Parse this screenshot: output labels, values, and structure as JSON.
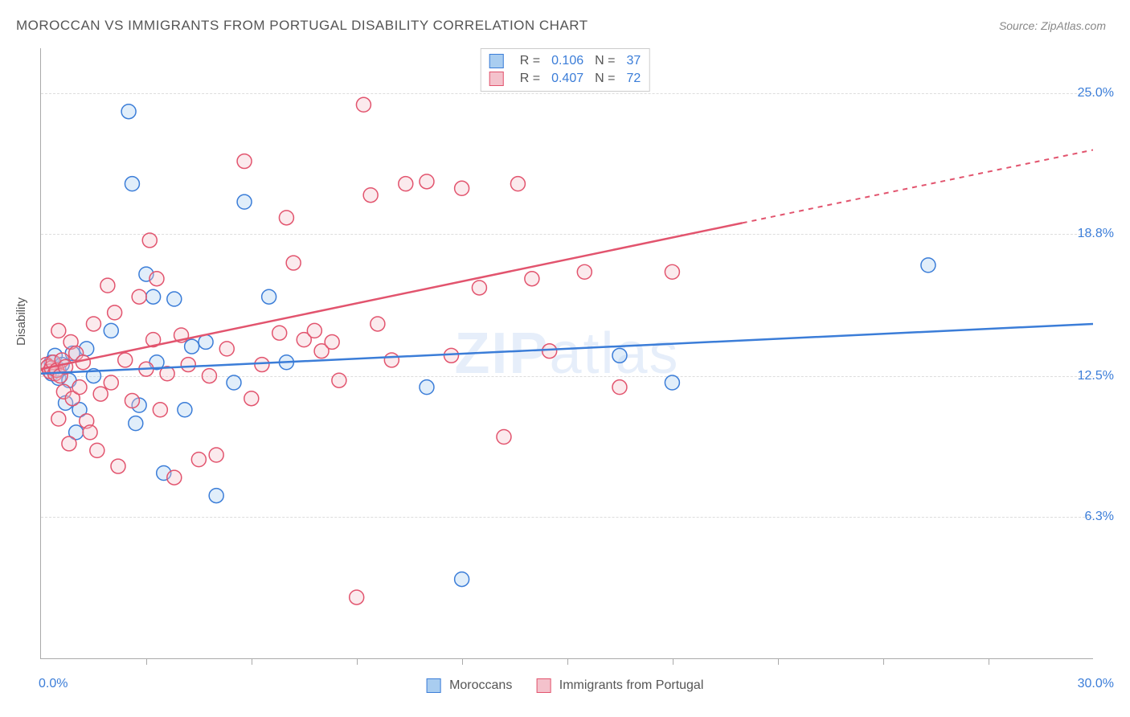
{
  "title": "MOROCCAN VS IMMIGRANTS FROM PORTUGAL DISABILITY CORRELATION CHART",
  "source": "Source: ZipAtlas.com",
  "watermark": "ZIPatlas",
  "ylabel": "Disability",
  "chart": {
    "type": "scatter",
    "xlim": [
      0,
      30
    ],
    "ylim": [
      0,
      27
    ],
    "xlabel_min": "0.0%",
    "xlabel_max": "30.0%",
    "xticks": [
      3,
      6,
      9,
      12,
      15,
      18,
      21,
      24,
      27
    ],
    "gridlines_y": [
      6.3,
      12.5,
      18.8,
      25.0
    ],
    "ytick_labels": [
      {
        "y": 6.3,
        "text": "6.3%"
      },
      {
        "y": 12.5,
        "text": "12.5%"
      },
      {
        "y": 18.8,
        "text": "18.8%"
      },
      {
        "y": 25.0,
        "text": "25.0%"
      }
    ],
    "background_color": "#ffffff",
    "grid_color": "#dddddd",
    "axis_color": "#aaaaaa",
    "tick_label_color": "#3b7dd8",
    "marker_radius": 9,
    "marker_fill_opacity": 0.35,
    "series": [
      {
        "name": "Moroccans",
        "color_fill": "#a9cdf0",
        "color_stroke": "#3b7dd8",
        "R": "0.106",
        "N": "37",
        "trend": {
          "x1": 0,
          "y1": 12.6,
          "x2": 30,
          "y2": 14.8,
          "solid_until_x": 30
        },
        "points": [
          [
            0.2,
            12.9
          ],
          [
            0.3,
            13.1
          ],
          [
            0.3,
            12.6
          ],
          [
            0.4,
            13.4
          ],
          [
            0.5,
            12.4
          ],
          [
            0.5,
            12.8
          ],
          [
            0.6,
            13.0
          ],
          [
            0.7,
            11.3
          ],
          [
            0.8,
            12.3
          ],
          [
            0.9,
            13.5
          ],
          [
            1.0,
            10.0
          ],
          [
            1.1,
            11.0
          ],
          [
            1.3,
            13.7
          ],
          [
            1.5,
            12.5
          ],
          [
            2.0,
            14.5
          ],
          [
            2.5,
            24.2
          ],
          [
            2.6,
            21.0
          ],
          [
            2.7,
            10.4
          ],
          [
            2.8,
            11.2
          ],
          [
            3.0,
            17.0
          ],
          [
            3.2,
            16.0
          ],
          [
            3.3,
            13.1
          ],
          [
            3.5,
            8.2
          ],
          [
            3.8,
            15.9
          ],
          [
            4.1,
            11.0
          ],
          [
            4.3,
            13.8
          ],
          [
            4.7,
            14.0
          ],
          [
            5.0,
            7.2
          ],
          [
            5.5,
            12.2
          ],
          [
            5.8,
            20.2
          ],
          [
            6.5,
            16.0
          ],
          [
            7.0,
            13.1
          ],
          [
            11.0,
            12.0
          ],
          [
            12.0,
            3.5
          ],
          [
            16.5,
            13.4
          ],
          [
            18.0,
            12.2
          ],
          [
            25.3,
            17.4
          ]
        ]
      },
      {
        "name": "Immigrants from Portugal",
        "color_fill": "#f4c2cc",
        "color_stroke": "#e2546e",
        "R": "0.407",
        "N": "72",
        "trend": {
          "x1": 0,
          "y1": 12.8,
          "x2": 30,
          "y2": 22.5,
          "solid_until_x": 20
        },
        "points": [
          [
            0.15,
            13.0
          ],
          [
            0.2,
            12.9
          ],
          [
            0.25,
            12.7
          ],
          [
            0.3,
            12.85
          ],
          [
            0.35,
            13.1
          ],
          [
            0.4,
            12.6
          ],
          [
            0.45,
            12.75
          ],
          [
            0.5,
            14.5
          ],
          [
            0.55,
            12.5
          ],
          [
            0.6,
            13.2
          ],
          [
            0.65,
            11.8
          ],
          [
            0.7,
            12.9
          ],
          [
            0.8,
            9.5
          ],
          [
            0.85,
            14.0
          ],
          [
            0.9,
            11.5
          ],
          [
            1.0,
            13.5
          ],
          [
            1.1,
            12.0
          ],
          [
            1.2,
            13.1
          ],
          [
            1.3,
            10.5
          ],
          [
            1.4,
            10.0
          ],
          [
            1.5,
            14.8
          ],
          [
            1.7,
            11.7
          ],
          [
            1.9,
            16.5
          ],
          [
            2.0,
            12.2
          ],
          [
            2.2,
            8.5
          ],
          [
            2.4,
            13.2
          ],
          [
            2.6,
            11.4
          ],
          [
            2.8,
            16.0
          ],
          [
            3.0,
            12.8
          ],
          [
            3.1,
            18.5
          ],
          [
            3.2,
            14.1
          ],
          [
            3.4,
            11.0
          ],
          [
            3.6,
            12.6
          ],
          [
            3.8,
            8.0
          ],
          [
            4.0,
            14.3
          ],
          [
            4.2,
            13.0
          ],
          [
            4.5,
            8.8
          ],
          [
            4.8,
            12.5
          ],
          [
            5.0,
            9.0
          ],
          [
            5.3,
            13.7
          ],
          [
            5.8,
            22.0
          ],
          [
            6.0,
            11.5
          ],
          [
            6.3,
            13.0
          ],
          [
            6.8,
            14.4
          ],
          [
            7.0,
            19.5
          ],
          [
            7.2,
            17.5
          ],
          [
            7.5,
            14.1
          ],
          [
            7.8,
            14.5
          ],
          [
            8.0,
            13.6
          ],
          [
            8.3,
            14.0
          ],
          [
            8.5,
            12.3
          ],
          [
            9.0,
            2.7
          ],
          [
            9.2,
            24.5
          ],
          [
            9.4,
            20.5
          ],
          [
            9.6,
            14.8
          ],
          [
            10.0,
            13.2
          ],
          [
            10.4,
            21.0
          ],
          [
            11.0,
            21.1
          ],
          [
            11.7,
            13.4
          ],
          [
            12.0,
            20.8
          ],
          [
            12.5,
            16.4
          ],
          [
            13.2,
            9.8
          ],
          [
            13.6,
            21.0
          ],
          [
            14.0,
            16.8
          ],
          [
            14.5,
            13.6
          ],
          [
            15.5,
            17.1
          ],
          [
            16.5,
            12.0
          ],
          [
            18.0,
            17.1
          ],
          [
            0.5,
            10.6
          ],
          [
            1.6,
            9.2
          ],
          [
            2.1,
            15.3
          ],
          [
            3.3,
            16.8
          ]
        ]
      }
    ]
  },
  "legend_bottom": [
    {
      "label": "Moroccans",
      "fill": "#a9cdf0",
      "stroke": "#3b7dd8"
    },
    {
      "label": "Immigrants from Portugal",
      "fill": "#f4c2cc",
      "stroke": "#e2546e"
    }
  ]
}
